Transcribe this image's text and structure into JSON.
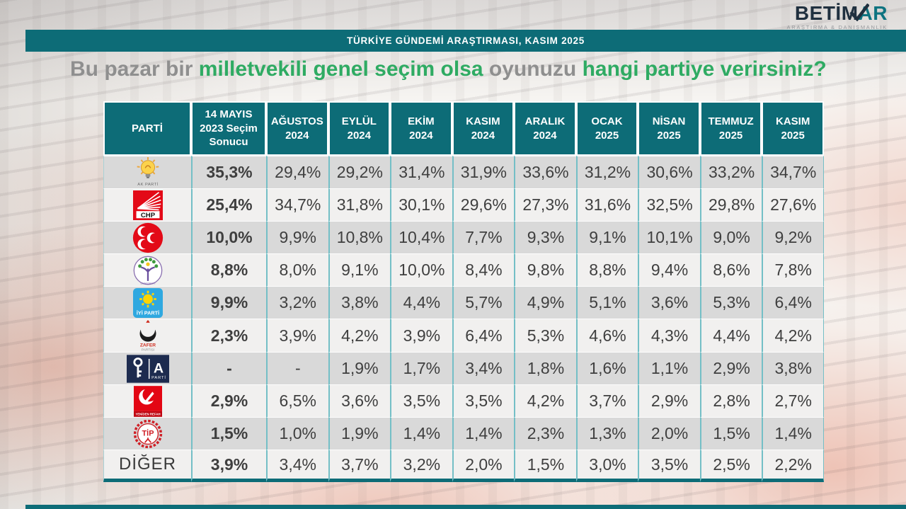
{
  "brand": {
    "word_dark": "BETİM",
    "word_a": "A",
    "word_r": "R",
    "subtitle": "ARAŞTIRMA & DANIŞMANLIK"
  },
  "banner": {
    "text": "TÜRKİYE GÜNDEMİ ARAŞTIRMASI, KASIM 2025"
  },
  "title": {
    "segments": [
      {
        "text": "Bu pazar bir ",
        "emphasis": false
      },
      {
        "text": "milletvekili genel seçim olsa",
        "emphasis": true
      },
      {
        "text": " oyunuzu ",
        "emphasis": false
      },
      {
        "text": "hangi partiye verirsiniz?",
        "emphasis": true
      }
    ]
  },
  "colors": {
    "teal": "#0d6c77",
    "green": "#2fab63",
    "row_gray": "#d9d9d9",
    "row_light": "#f1f0ef",
    "grid_line": "#74bfc6"
  },
  "chart_data": {
    "type": "table",
    "title": "Bu pazar bir milletvekili genel seçim olsa oyunuzu hangi partiye verirsiniz?",
    "header": {
      "party": "PARTİ",
      "election_lines": [
        "14 MAYIS",
        "2023 Seçim",
        "Sonucu"
      ],
      "months": [
        {
          "month": "AĞUSTOS",
          "year": "2024"
        },
        {
          "month": "EYLÜL",
          "year": "2024"
        },
        {
          "month": "EKİM",
          "year": "2024"
        },
        {
          "month": "KASIM",
          "year": "2024"
        },
        {
          "month": "ARALIK",
          "year": "2024"
        },
        {
          "month": "OCAK",
          "year": "2025"
        },
        {
          "month": "NİSAN",
          "year": "2025"
        },
        {
          "month": "TEMMUZ",
          "year": "2025"
        },
        {
          "month": "KASIM",
          "year": "2025"
        }
      ]
    },
    "rows": [
      {
        "key": "ak-parti",
        "name": "AK PARTİ",
        "election": "35,3%",
        "months": [
          "29,4%",
          "29,2%",
          "31,4%",
          "31,9%",
          "33,6%",
          "31,2%",
          "30,6%",
          "33,2%",
          "34,7%"
        ]
      },
      {
        "key": "chp",
        "name": "CHP",
        "election": "25,4%",
        "months": [
          "34,7%",
          "31,8%",
          "30,1%",
          "29,6%",
          "27,3%",
          "31,6%",
          "32,5%",
          "29,8%",
          "27,6%"
        ]
      },
      {
        "key": "mhp",
        "name": "MHP",
        "election": "10,0%",
        "months": [
          "9,9%",
          "10,8%",
          "10,4%",
          "7,7%",
          "9,3%",
          "9,1%",
          "10,1%",
          "9,0%",
          "9,2%"
        ]
      },
      {
        "key": "dem-parti",
        "name": "DEM PARTİ",
        "election": "8,8%",
        "months": [
          "8,0%",
          "9,1%",
          "10,0%",
          "8,4%",
          "9,8%",
          "8,8%",
          "9,4%",
          "8,6%",
          "7,8%"
        ]
      },
      {
        "key": "iyi-parti",
        "name": "İYİ PARTİ",
        "election": "9,9%",
        "months": [
          "3,2%",
          "3,8%",
          "4,4%",
          "5,7%",
          "4,9%",
          "5,1%",
          "3,6%",
          "5,3%",
          "6,4%"
        ]
      },
      {
        "key": "zafer-partisi",
        "name": "ZAFER PARTİSİ",
        "election": "2,3%",
        "months": [
          "3,9%",
          "4,2%",
          "3,9%",
          "6,4%",
          "5,3%",
          "4,6%",
          "4,3%",
          "4,4%",
          "4,2%"
        ]
      },
      {
        "key": "anahtar-parti",
        "name": "A PARTİ",
        "election": "-",
        "months": [
          "-",
          "1,9%",
          "1,7%",
          "3,4%",
          "1,8%",
          "1,6%",
          "1,1%",
          "2,9%",
          "3,8%"
        ]
      },
      {
        "key": "yeniden-refah",
        "name": "YENİDEN REFAH",
        "election": "2,9%",
        "months": [
          "6,5%",
          "3,6%",
          "3,5%",
          "3,5%",
          "4,2%",
          "3,7%",
          "2,9%",
          "2,8%",
          "2,7%"
        ]
      },
      {
        "key": "tip",
        "name": "TİP",
        "election": "1,5%",
        "months": [
          "1,0%",
          "1,9%",
          "1,4%",
          "1,4%",
          "2,3%",
          "1,3%",
          "2,0%",
          "1,5%",
          "1,4%"
        ]
      },
      {
        "key": "diger",
        "name": "DİĞER",
        "election": "3,9%",
        "months": [
          "3,4%",
          "3,7%",
          "3,2%",
          "2,0%",
          "1,5%",
          "3,0%",
          "3,5%",
          "2,5%",
          "2,2%"
        ]
      }
    ]
  }
}
